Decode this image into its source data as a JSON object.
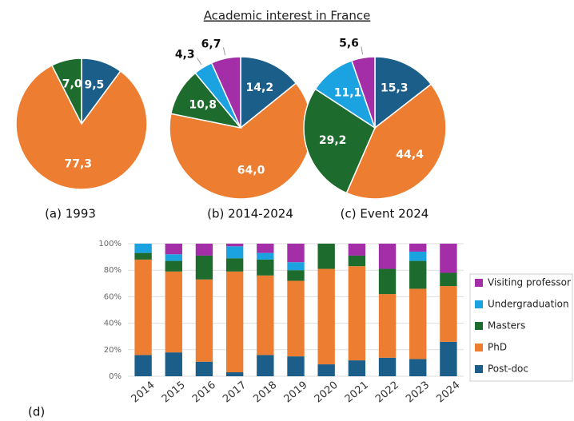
{
  "title": "Academic interest in France",
  "chart_data": [
    {
      "type": "pie",
      "title": "(a) 1993",
      "values": [
        9.5,
        77.3,
        7.0
      ],
      "value_labels": [
        "9,5",
        "77,3",
        "7,0"
      ],
      "colors": [
        "#1b5e8a",
        "#ed7d31",
        "#1e6b2e"
      ]
    },
    {
      "type": "pie",
      "title": "(b) 2014-2024",
      "values": [
        14.2,
        64.0,
        10.8,
        4.3,
        6.7
      ],
      "value_labels": [
        "14,2",
        "64,0",
        "10,8",
        "4,3",
        "6,7"
      ],
      "colors": [
        "#1b5e8a",
        "#ed7d31",
        "#1e6b2e",
        "#1aa3e0",
        "#a32ea8"
      ]
    },
    {
      "type": "pie",
      "title": "(c) Event 2024",
      "values": [
        15.3,
        44.4,
        29.2,
        11.1,
        5.6
      ],
      "value_labels": [
        "15,3",
        "44,4",
        "29,2",
        "11,1",
        "5,6"
      ],
      "colors": [
        "#1b5e8a",
        "#ed7d31",
        "#1e6b2e",
        "#1aa3e0",
        "#a32ea8"
      ]
    },
    {
      "type": "stacked_bar",
      "title": "(d)",
      "categories": [
        "2014",
        "2015",
        "2016",
        "2017",
        "2018",
        "2019",
        "2020",
        "2021",
        "2022",
        "2023",
        "2024"
      ],
      "series": [
        {
          "name": "Post-doc",
          "color": "#1b5e8a",
          "values": [
            16,
            18,
            11,
            3,
            16,
            15,
            9,
            12,
            14,
            13,
            26
          ]
        },
        {
          "name": "PhD",
          "color": "#ed7d31",
          "values": [
            72,
            61,
            62,
            76,
            60,
            57,
            72,
            71,
            48,
            53,
            42
          ]
        },
        {
          "name": "Masters",
          "color": "#1e6b2e",
          "values": [
            5,
            8,
            18,
            10,
            12,
            8,
            19,
            8,
            19,
            21,
            10
          ]
        },
        {
          "name": "Undergraduation",
          "color": "#1aa3e0",
          "values": [
            7,
            5,
            0,
            9,
            5,
            6,
            0,
            0,
            0,
            7,
            0
          ]
        },
        {
          "name": "Visiting professor",
          "color": "#a32ea8",
          "values": [
            0,
            8,
            9,
            2,
            7,
            14,
            0,
            9,
            19,
            6,
            22
          ]
        }
      ],
      "ylim": [
        0,
        100
      ],
      "yticks": [
        {
          "value": 0,
          "label": "0%"
        },
        {
          "value": 20,
          "label": "20%"
        },
        {
          "value": 40,
          "label": "40%"
        },
        {
          "value": 60,
          "label": "60%"
        },
        {
          "value": 80,
          "label": "80%"
        },
        {
          "value": 100,
          "label": "100%"
        }
      ],
      "grid": true,
      "legend": "right"
    }
  ]
}
